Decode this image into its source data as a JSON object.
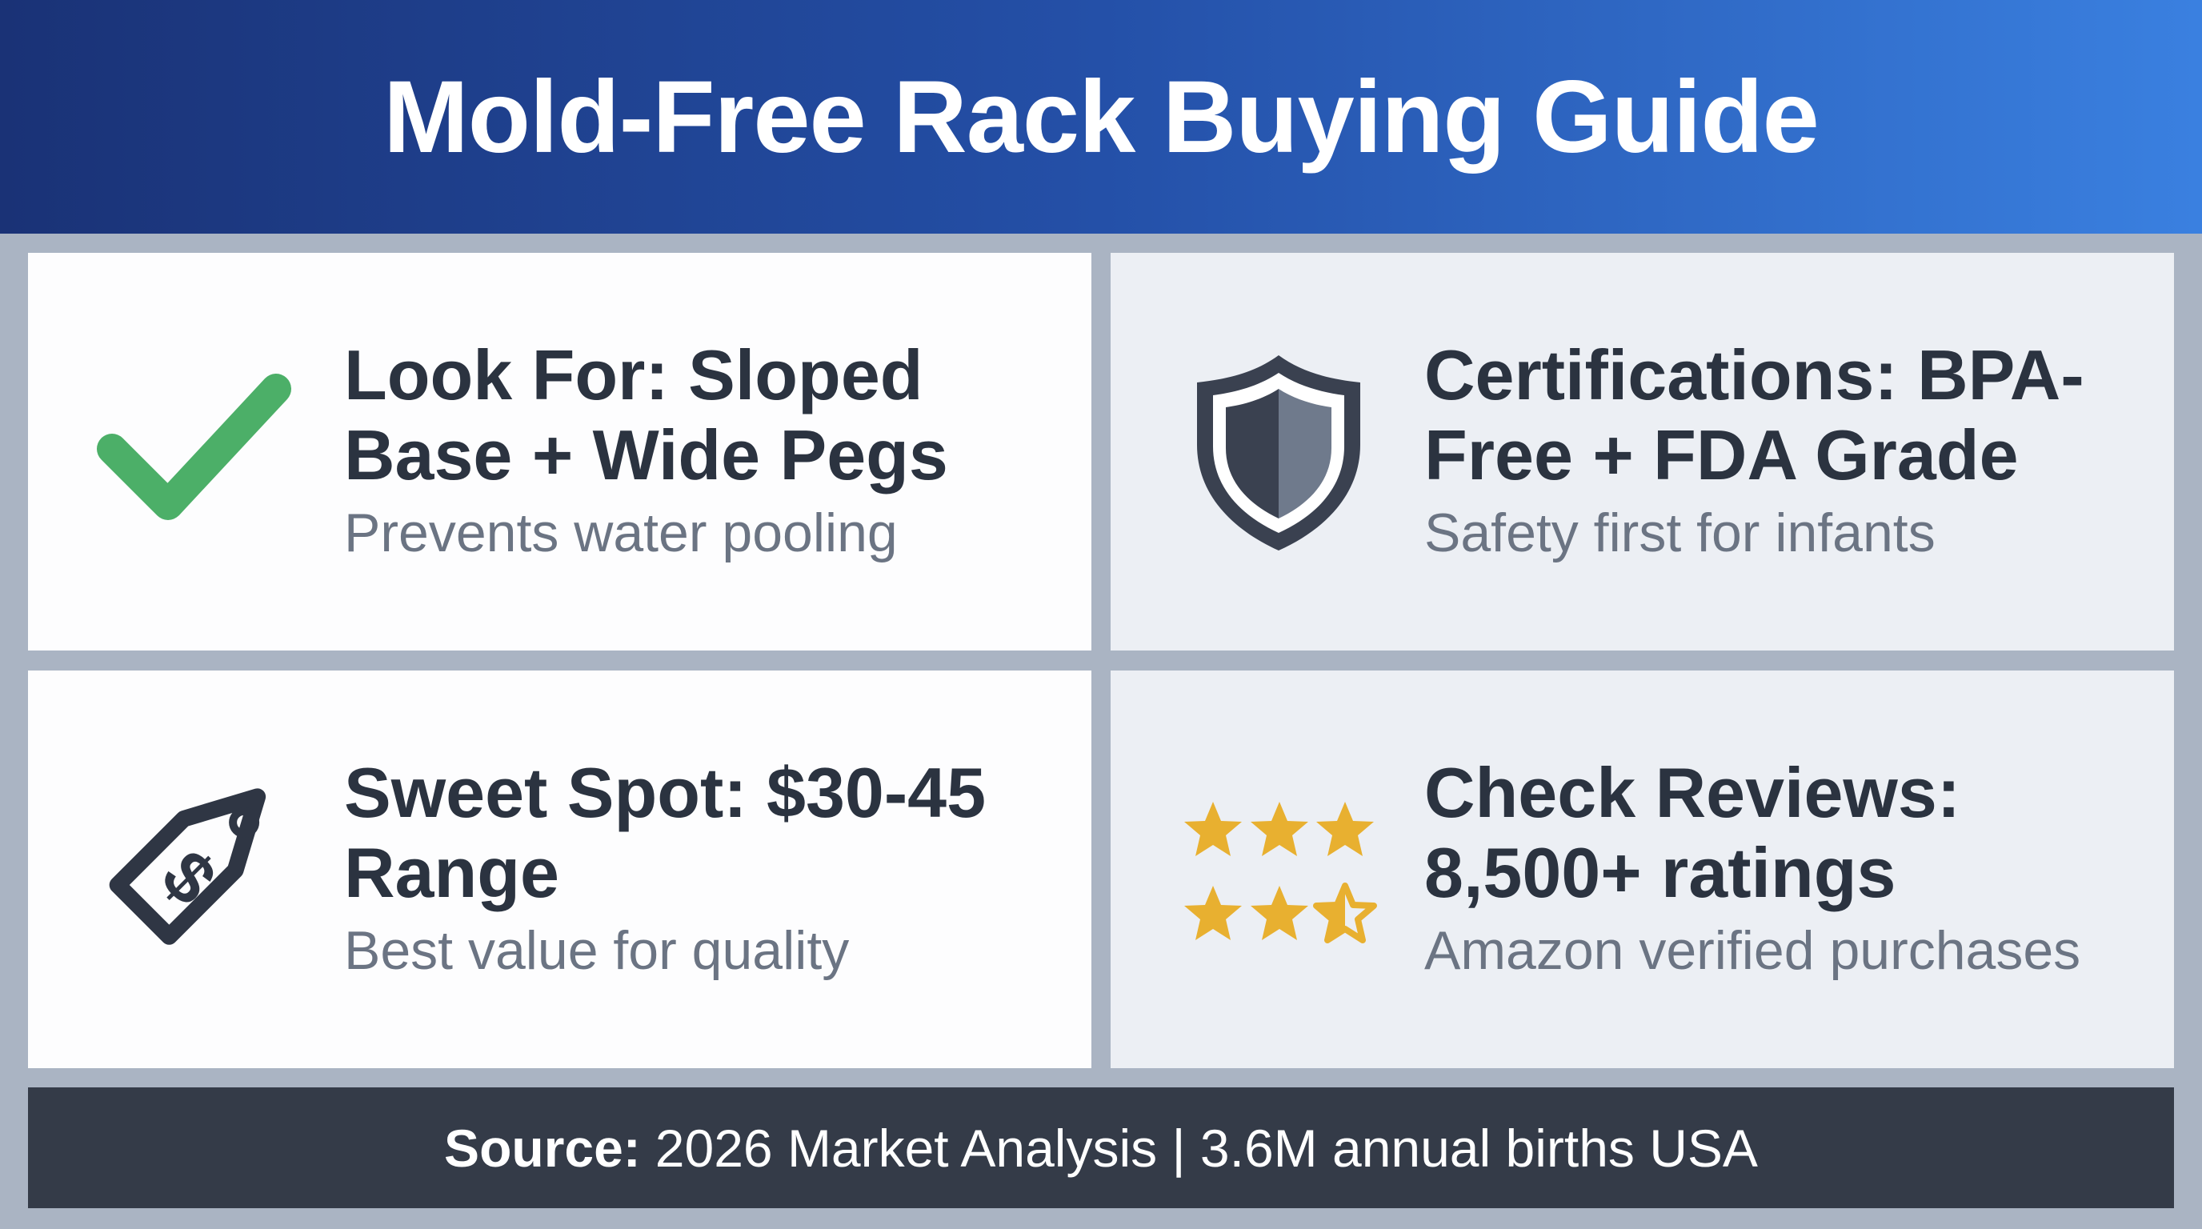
{
  "header": {
    "title": "Mold-Free Rack Buying Guide"
  },
  "cards": [
    {
      "icon": "checkmark-icon",
      "heading": "Look For: Sloped Base + Wide Pegs",
      "subtitle": "Prevents water pooling"
    },
    {
      "icon": "shield-icon",
      "heading": "Certifications: BPA-Free + FDA Grade",
      "subtitle": "Safety first for infants"
    },
    {
      "icon": "price-tag-dollar-icon",
      "heading": "Sweet Spot: $30-45 Range",
      "subtitle": "Best value for quality"
    },
    {
      "icon": "star-rating-icon",
      "heading": "Check Reviews: 8,500+ ratings",
      "subtitle": "Amazon verified purchases",
      "stars_full": 5,
      "stars_half": 1
    }
  ],
  "footer": {
    "label": "Source:",
    "text": "2026 Market Analysis | 3.6M annual births USA"
  },
  "colors": {
    "header_start": "#1a3276",
    "header_end": "#3a80e0",
    "check": "#4caf68",
    "star": "#e8b030",
    "footer_bg": "#343b48",
    "text_dark": "#2b3340"
  }
}
